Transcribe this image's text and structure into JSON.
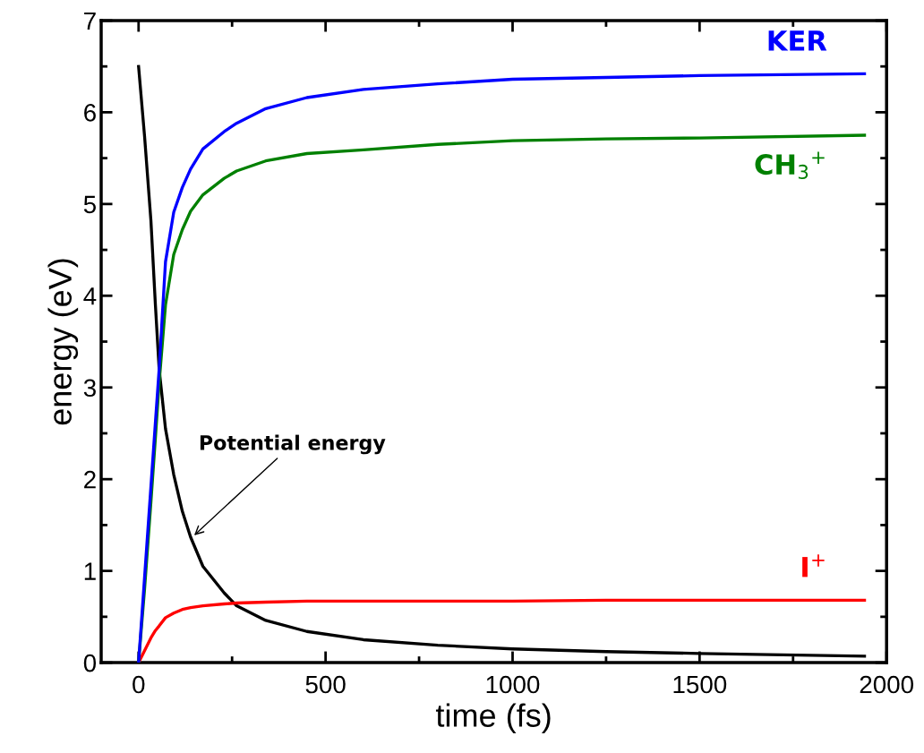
{
  "chart_data": {
    "type": "line",
    "xlabel": "time (fs)",
    "ylabel": "energy (eV)",
    "x": [
      0,
      16,
      33,
      45,
      55,
      72,
      94,
      117,
      139,
      172,
      229,
      262,
      340,
      450,
      601,
      800,
      1000,
      1250,
      1500,
      1941
    ],
    "series": [
      {
        "name": "KER",
        "color": "#0000ff",
        "values": [
          0,
          0.93,
          1.92,
          2.62,
          3.2,
          4.37,
          4.91,
          5.18,
          5.38,
          5.6,
          5.79,
          5.88,
          6.04,
          6.16,
          6.25,
          6.31,
          6.36,
          6.38,
          6.4,
          6.42
        ]
      },
      {
        "name": "CH$_{3}$$^{+}$",
        "color": "#008000",
        "values": [
          0,
          0.8,
          1.75,
          2.45,
          3.05,
          3.9,
          4.45,
          4.72,
          4.92,
          5.1,
          5.28,
          5.36,
          5.47,
          5.55,
          5.59,
          5.65,
          5.69,
          5.71,
          5.72,
          5.75
        ]
      },
      {
        "name": "I$^{+}$",
        "color": "#ff0000",
        "values": [
          0,
          0.13,
          0.27,
          0.35,
          0.4,
          0.49,
          0.54,
          0.58,
          0.6,
          0.62,
          0.64,
          0.65,
          0.66,
          0.67,
          0.67,
          0.67,
          0.67,
          0.68,
          0.68,
          0.68
        ]
      },
      {
        "color": "#000000",
        "values": [
          6.5,
          5.74,
          4.82,
          3.9,
          3.2,
          2.55,
          2.05,
          1.65,
          1.37,
          1.05,
          0.76,
          0.62,
          0.46,
          0.34,
          0.25,
          0.19,
          0.15,
          0.12,
          0.1,
          0.07
        ]
      }
    ],
    "annotations": [
      {
        "text": "Potential energy",
        "x": 144,
        "y": 1.37
      }
    ],
    "xlim": [
      -100,
      2000
    ],
    "ylim": [
      0,
      7
    ],
    "xticks": [
      0,
      500,
      1000,
      1500,
      2000
    ],
    "yticks": [
      0,
      1,
      2,
      3,
      4,
      5,
      6,
      7
    ],
    "grid": false,
    "legend": false,
    "marker": "none",
    "line_style": "solid"
  }
}
